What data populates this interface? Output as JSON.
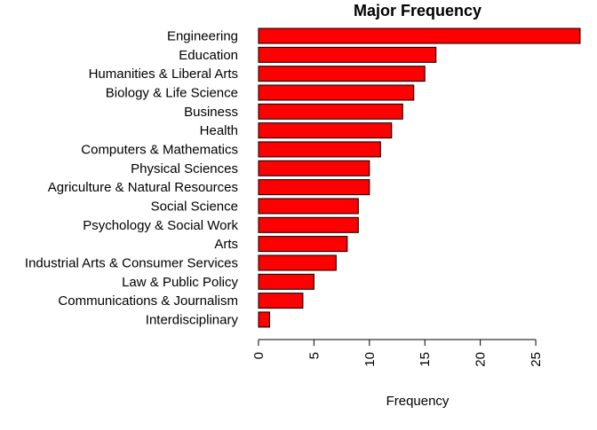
{
  "chart_data": {
    "type": "bar",
    "orientation": "horizontal",
    "title": "Major Frequency",
    "xlabel": "Frequency",
    "ylabel": "",
    "xlim": [
      0,
      29
    ],
    "x_ticks": [
      0,
      5,
      10,
      15,
      20,
      25
    ],
    "grid": false,
    "legend": "none",
    "bar_color": "#ff0000",
    "bar_border_color": "#000000",
    "categories": [
      "Engineering",
      "Education",
      "Humanities & Liberal Arts",
      "Biology & Life Science",
      "Business",
      "Health",
      "Computers & Mathematics",
      "Physical Sciences",
      "Agriculture & Natural Resources",
      "Social Science",
      "Psychology & Social Work",
      "Arts",
      "Industrial Arts & Consumer Services",
      "Law & Public Policy",
      "Communications & Journalism",
      "Interdisciplinary"
    ],
    "values": [
      29,
      16,
      15,
      14,
      13,
      12,
      11,
      10,
      10,
      9,
      9,
      8,
      7,
      5,
      4,
      1
    ]
  }
}
